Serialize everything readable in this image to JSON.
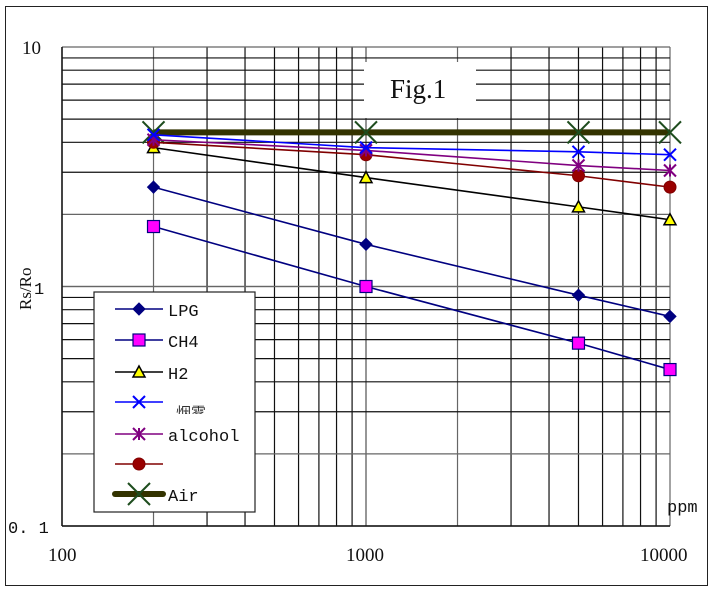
{
  "chart_data": {
    "type": "line",
    "title": "Fig.1",
    "xlabel": "ppm",
    "ylabel": "Rs/Ro",
    "xscale": "log",
    "yscale": "log",
    "xlim": [
      100,
      10000
    ],
    "ylim": [
      0.1,
      10
    ],
    "x_tick_labels": [
      "100",
      "1000",
      "10000"
    ],
    "y_tick_labels": [
      "10",
      "1",
      "0. 1"
    ],
    "grid": true,
    "legend_position": "lower-left inside",
    "x": [
      200,
      1000,
      5000,
      10000
    ],
    "series": [
      {
        "name": "LPG",
        "marker": "diamond",
        "color": "#000080",
        "marker_fill": "#000080",
        "values": [
          2.6,
          1.5,
          0.92,
          0.75
        ]
      },
      {
        "name": "CH4",
        "marker": "square",
        "color": "#000080",
        "marker_fill": "#ff00ff",
        "values": [
          1.78,
          1.0,
          0.58,
          0.45
        ]
      },
      {
        "name": "H2",
        "marker": "triangle",
        "color": "#000000",
        "marker_fill": "#ffff00",
        "values": [
          3.8,
          2.85,
          2.15,
          1.9
        ]
      },
      {
        "name": "烟雾",
        "marker": "x",
        "color": "#0000ff",
        "marker_fill": "#0000ff",
        "values": [
          4.3,
          3.8,
          3.65,
          3.55
        ]
      },
      {
        "name": "alcohol",
        "marker": "star",
        "color": "#800080",
        "marker_fill": "#800080",
        "values": [
          4.1,
          3.7,
          3.2,
          3.05
        ]
      },
      {
        "name": "",
        "marker": "circle",
        "color": "#800000",
        "marker_fill": "#990000",
        "values": [
          4.0,
          3.55,
          2.9,
          2.6
        ]
      },
      {
        "name": "Air",
        "marker": "x",
        "color": "#333300",
        "marker_fill": "#1e4d1e",
        "values": [
          4.4,
          4.4,
          4.4,
          4.4
        ]
      }
    ]
  },
  "labels": {
    "title": "Fig.1",
    "y_axis": "Rs/Ro",
    "x_unit": "ppm",
    "y_ticks": [
      "10",
      "1",
      "0. 1"
    ],
    "x_ticks": [
      "100",
      "1000",
      "10000"
    ],
    "legend": [
      "LPG",
      "CH4",
      "H2",
      "烟雾",
      "alcohol",
      "",
      "Air"
    ]
  }
}
